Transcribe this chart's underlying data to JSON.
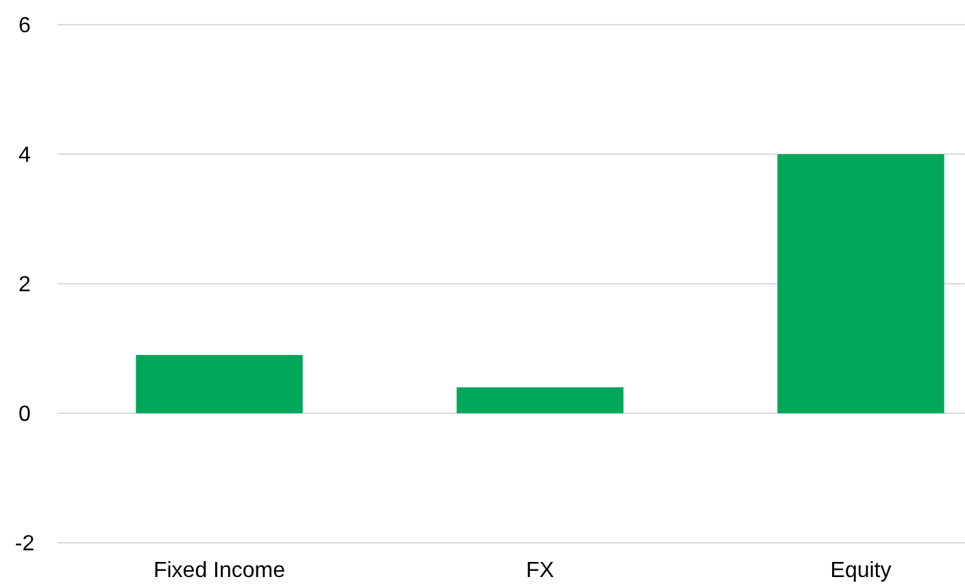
{
  "chart_data": {
    "type": "bar",
    "categories": [
      "Fixed Income",
      "FX",
      "Equity"
    ],
    "values": [
      0.9,
      0.4,
      4.0
    ],
    "color": "#00a65a",
    "ylim": [
      -2,
      6
    ],
    "yticks": [
      -2,
      0,
      2,
      4,
      6
    ],
    "grid": "y"
  }
}
